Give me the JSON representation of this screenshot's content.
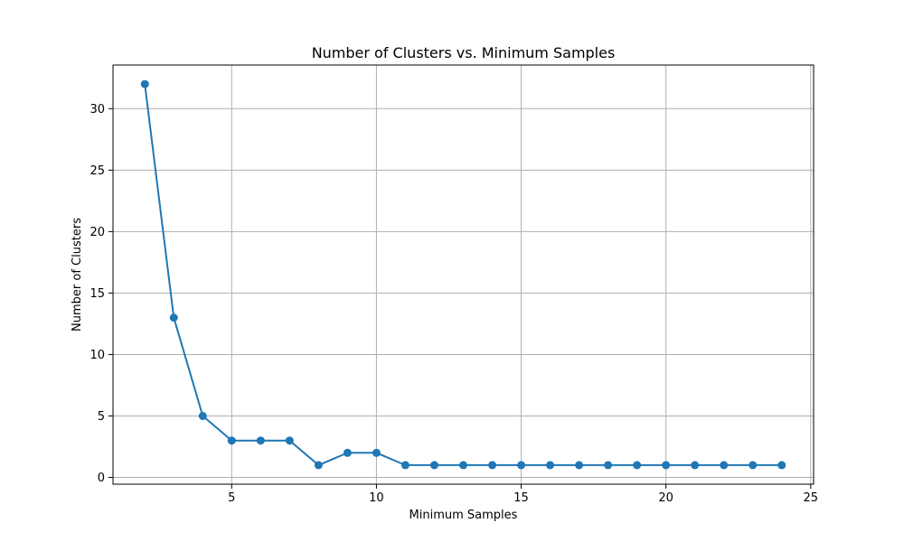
{
  "chart_data": {
    "type": "line",
    "title": "Number of Clusters vs. Minimum Samples",
    "xlabel": "Minimum Samples",
    "ylabel": "Number of Clusters",
    "x": [
      2,
      3,
      4,
      5,
      6,
      7,
      8,
      9,
      10,
      11,
      12,
      13,
      14,
      15,
      16,
      17,
      18,
      19,
      20,
      21,
      22,
      23,
      24
    ],
    "series": [
      {
        "values": [
          32,
          13,
          5,
          3,
          3,
          3,
          1,
          2,
          2,
          1,
          1,
          1,
          1,
          1,
          1,
          1,
          1,
          1,
          1,
          1,
          1,
          1,
          1
        ],
        "color": "#1f77b4",
        "marker": "circle"
      }
    ],
    "xlim": [
      0.9,
      25.1
    ],
    "ylim": [
      -0.55,
      33.55
    ],
    "xticks": [
      5,
      10,
      15,
      20,
      25
    ],
    "yticks": [
      0,
      5,
      10,
      15,
      20,
      25,
      30
    ],
    "grid": true
  }
}
